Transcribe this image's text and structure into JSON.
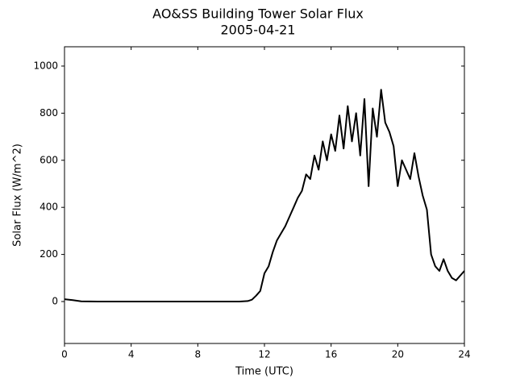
{
  "chart_data": {
    "type": "line",
    "title": "AO&SS Building Tower Solar Flux",
    "subtitle": "2005-04-21",
    "x_label": "Time (UTC)",
    "y_label": "Solar Flux (W/m^2)",
    "x": [
      0,
      0.5,
      1,
      2,
      3,
      4,
      5,
      6,
      7,
      8,
      9,
      10,
      10.5,
      11,
      11.25,
      11.5,
      11.75,
      12,
      12.25,
      12.5,
      12.75,
      13,
      13.25,
      13.5,
      13.75,
      14,
      14.25,
      14.5,
      14.75,
      15,
      15.25,
      15.5,
      15.75,
      16,
      16.25,
      16.5,
      16.75,
      17,
      17.25,
      17.5,
      17.75,
      18,
      18.25,
      18.5,
      18.75,
      19,
      19.25,
      19.5,
      19.75,
      20,
      20.25,
      20.5,
      20.75,
      21,
      21.25,
      21.5,
      21.75,
      22,
      22.25,
      22.5,
      22.75,
      23,
      23.25,
      23.5,
      23.75,
      24
    ],
    "values": [
      10,
      6,
      1,
      0,
      0,
      0,
      0,
      0,
      0,
      0,
      0,
      0,
      0,
      2,
      8,
      25,
      45,
      120,
      150,
      210,
      260,
      290,
      320,
      360,
      400,
      440,
      470,
      540,
      520,
      620,
      560,
      680,
      600,
      710,
      640,
      790,
      650,
      830,
      680,
      800,
      620,
      860,
      490,
      820,
      700,
      900,
      760,
      720,
      660,
      490,
      600,
      560,
      520,
      630,
      530,
      450,
      390,
      200,
      150,
      130,
      180,
      130,
      100,
      90,
      110,
      130
    ],
    "color": "#000000",
    "xlim": [
      0,
      24
    ],
    "xticks": [
      0,
      4,
      8,
      12,
      16,
      20,
      24
    ],
    "ylim": [
      -178,
      1082
    ],
    "yticks": [
      0,
      200,
      400,
      600,
      800,
      1000
    ]
  }
}
